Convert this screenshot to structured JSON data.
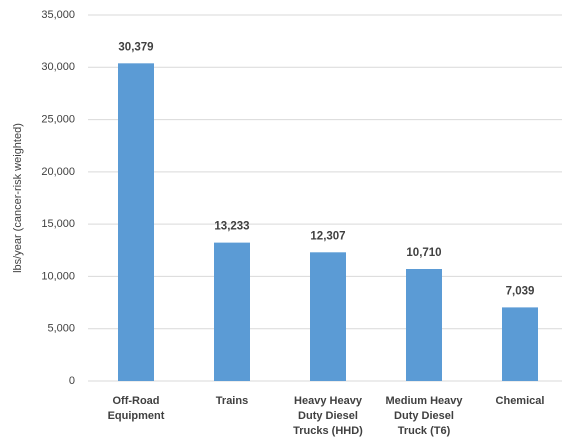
{
  "chart_data": {
    "type": "bar",
    "y_label": "lbs/year (cancer-risk weighted)",
    "categories": [
      "Off-Road\nEquipment",
      "Trains",
      "Heavy Heavy\nDuty Diesel\nTrucks (HHD)",
      "Medium Heavy\nDuty Diesel\nTruck (T6)",
      "Chemical"
    ],
    "values": [
      30379,
      13233,
      12307,
      10710,
      7039
    ],
    "value_labels": [
      "30,379",
      "13,233",
      "12,307",
      "10,710",
      "7,039"
    ],
    "color": "#5b9bd5",
    "ylim": [
      0,
      35000
    ],
    "yticks": [
      0,
      {
        "value": 5000,
        "label": "5,000"
      },
      {
        "value": 10000,
        "label": "10,000"
      },
      {
        "value": 15000,
        "label": "15,000"
      },
      {
        "value": 20000,
        "label": "20,000"
      },
      {
        "value": 25000,
        "label": "25,000"
      },
      {
        "value": 30000,
        "label": "30,000"
      },
      {
        "value": 35000,
        "label": "35,000"
      }
    ],
    "grid": true
  }
}
